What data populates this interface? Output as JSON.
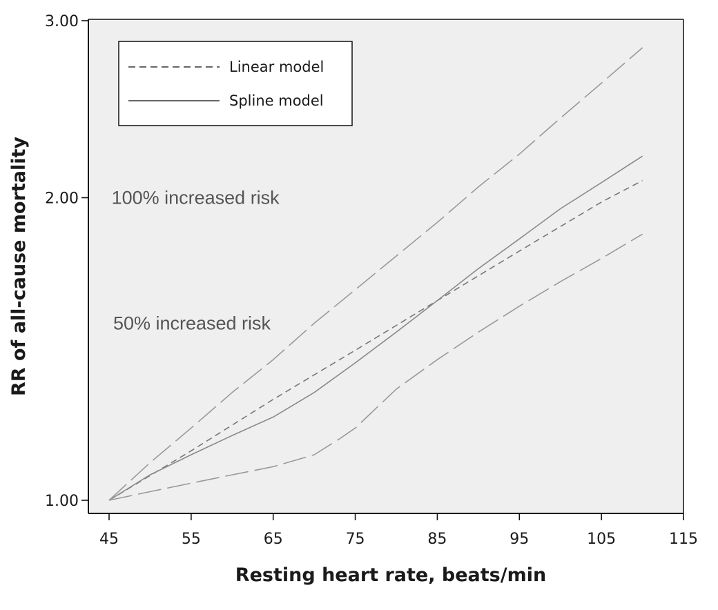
{
  "chart_data": {
    "type": "line",
    "xlabel": "Resting heart rate, beats/min",
    "ylabel": "RR of all-cause mortality",
    "xlim": [
      45,
      115
    ],
    "ylim_log": [
      1.0,
      3.0
    ],
    "y_scale": "log",
    "x_ticks": [
      45,
      55,
      65,
      75,
      85,
      95,
      105,
      115
    ],
    "x_tick_labels": [
      "45",
      "55",
      "65",
      "75",
      "85",
      "95",
      "105",
      "115"
    ],
    "y_ticks": [
      1.0,
      2.0,
      3.0
    ],
    "y_tick_labels": [
      "1.00",
      "2.00",
      "3.00"
    ],
    "grid": false,
    "legend_position": "top-left",
    "background": "#efefef",
    "series": [
      {
        "name": "Linear model",
        "style": "dashed",
        "color": "#777777",
        "x": [
          45,
          55,
          65,
          75,
          85,
          95,
          105,
          110
        ],
        "y": [
          1.0,
          1.12,
          1.26,
          1.41,
          1.58,
          1.77,
          1.98,
          2.08
        ]
      },
      {
        "name": "Spline model",
        "style": "solid",
        "color": "#8a8a8a",
        "x": [
          45,
          50,
          55,
          60,
          65,
          70,
          75,
          80,
          85,
          90,
          95,
          100,
          105,
          110
        ],
        "y": [
          1.0,
          1.06,
          1.11,
          1.16,
          1.21,
          1.28,
          1.37,
          1.47,
          1.58,
          1.7,
          1.82,
          1.95,
          2.07,
          2.2
        ]
      },
      {
        "style": "long-dash",
        "color": "#999999",
        "x": [
          45,
          50,
          55,
          60,
          65,
          70,
          75,
          80,
          85,
          90,
          95,
          100,
          105,
          110
        ],
        "y": [
          1.0,
          1.09,
          1.18,
          1.28,
          1.38,
          1.5,
          1.62,
          1.75,
          1.89,
          2.05,
          2.21,
          2.4,
          2.6,
          2.82
        ]
      },
      {
        "style": "long-dash",
        "color": "#999999",
        "x": [
          45,
          50,
          55,
          60,
          65,
          70,
          73,
          75,
          80,
          85,
          90,
          95,
          100,
          105,
          110
        ],
        "y": [
          1.0,
          1.02,
          1.04,
          1.06,
          1.08,
          1.11,
          1.15,
          1.18,
          1.29,
          1.38,
          1.47,
          1.56,
          1.65,
          1.74,
          1.84
        ]
      }
    ],
    "annotations": [
      {
        "text": "100% increased risk",
        "x": 45.3,
        "y": 2.0
      },
      {
        "text": "50% increased risk",
        "x": 45.5,
        "y": 1.5
      }
    ]
  }
}
